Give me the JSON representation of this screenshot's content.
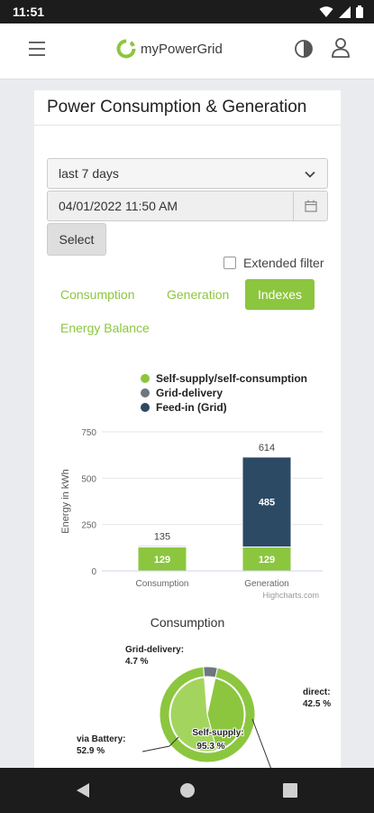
{
  "status": {
    "time": "11:51"
  },
  "app": {
    "logo_text": "myPowerGrid"
  },
  "card": {
    "title": "Power Consumption & Generation",
    "period_select": "last 7 days",
    "date_value": "04/01/2022 11:50 AM",
    "select_button": "Select",
    "extended_filter": "Extended filter",
    "extended_filter_checked": false
  },
  "tabs": [
    {
      "label": "Consumption",
      "active": false
    },
    {
      "label": "Generation",
      "active": false
    },
    {
      "label": "Indexes",
      "active": true
    },
    {
      "label": "Energy Balance",
      "active": false
    }
  ],
  "legend": [
    {
      "label": "Self-supply/self-consumption",
      "color": "#8cc63f"
    },
    {
      "label": "Grid-delivery",
      "color": "#6d7780"
    },
    {
      "label": "Feed-in (Grid)",
      "color": "#2c4a63"
    }
  ],
  "chart_data": [
    {
      "type": "bar",
      "stacked": true,
      "categories": [
        "Consumption",
        "Generation"
      ],
      "series": [
        {
          "name": "Self-supply/self-consumption",
          "values": [
            129,
            129
          ],
          "color": "#8cc63f"
        },
        {
          "name": "Grid-delivery",
          "values": [
            6,
            0
          ],
          "color": "#6d7780"
        },
        {
          "name": "Feed-in (Grid)",
          "values": [
            0,
            485
          ],
          "color": "#2c4a63"
        }
      ],
      "totals": [
        "135",
        "614"
      ],
      "segment_labels": [
        "129",
        "129",
        "485"
      ],
      "ylabel": "Energy in kWh",
      "ylim": [
        0,
        750
      ],
      "yticks": [
        "0",
        "250",
        "500",
        "750"
      ],
      "credit": "Highcharts.com",
      "grid": true
    },
    {
      "type": "pie",
      "title": "Consumption",
      "outer_slices": [
        {
          "name": "Self-supply:",
          "value": 95.3,
          "label": "95.3 %",
          "color": "#8cc63f"
        },
        {
          "name": "Grid-delivery:",
          "value": 4.7,
          "label": "4.7 %",
          "color": "#6d7780"
        }
      ],
      "inner_slices": [
        {
          "name": "direct:",
          "value": 42.5,
          "label": "42.5 %",
          "color": "#8cc63f"
        },
        {
          "name": "via Battery:",
          "value": 52.9,
          "label": "52.9 %",
          "color": "#a3d55e"
        }
      ]
    }
  ]
}
